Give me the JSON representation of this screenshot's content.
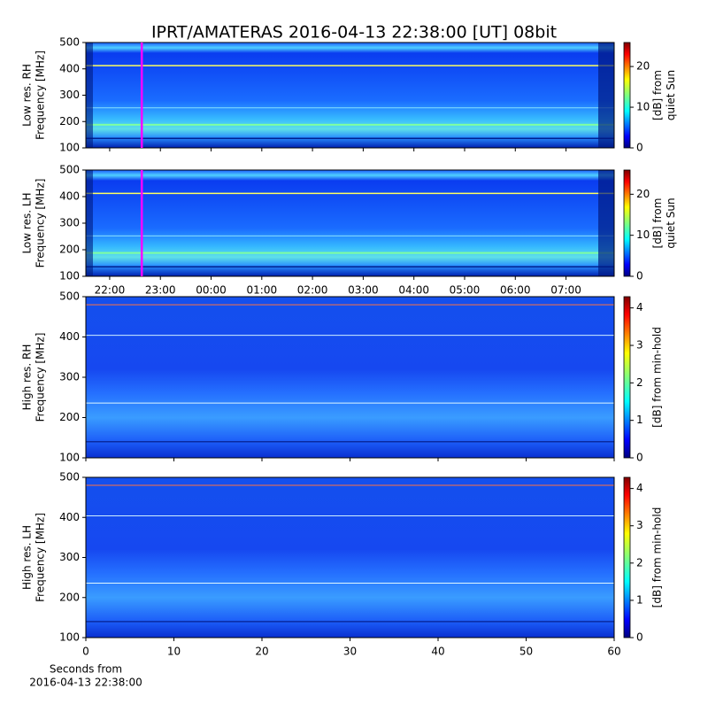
{
  "title": "IPRT/AMATERAS 2016-04-13 22:38:00 [UT]   08bit",
  "chart_data": [
    {
      "type": "spectrogram",
      "ylabel": [
        "Low res. RH",
        "Frequency [MHz]"
      ],
      "ylim": [
        100,
        500
      ],
      "yticks": [
        100,
        200,
        300,
        400,
        500
      ],
      "xlim": [
        21.53,
        31.95
      ],
      "xticks": [
        22,
        23,
        24,
        25,
        26,
        27,
        28,
        29,
        30,
        31
      ],
      "xtick_labels": false,
      "marker_x": 22.633,
      "marker_color": "#ff00ff",
      "colorbar": {
        "label": [
          "[dB] from",
          "quiet Sun"
        ],
        "lim": [
          0,
          25.9
        ],
        "ticks": [
          0,
          10,
          20
        ]
      }
    },
    {
      "type": "spectrogram",
      "ylabel": [
        "Low res. LH",
        "Frequency [MHz]"
      ],
      "ylim": [
        100,
        500
      ],
      "yticks": [
        100,
        200,
        300,
        400,
        500
      ],
      "xlim": [
        21.53,
        31.95
      ],
      "xticks": [
        {
          "value": 22,
          "label": "22:00"
        },
        {
          "value": 23,
          "label": "23:00"
        },
        {
          "value": 24,
          "label": "00:00"
        },
        {
          "value": 25,
          "label": "01:00"
        },
        {
          "value": 26,
          "label": "02:00"
        },
        {
          "value": 27,
          "label": "03:00"
        },
        {
          "value": 28,
          "label": "04:00"
        },
        {
          "value": 29,
          "label": "05:00"
        },
        {
          "value": 30,
          "label": "06:00"
        },
        {
          "value": 31,
          "label": "07:00"
        }
      ],
      "xtick_labels": true,
      "marker_x": 22.633,
      "marker_color": "#ff00ff",
      "colorbar": {
        "label": [
          "[dB] from",
          "quiet Sun"
        ],
        "lim": [
          0,
          25.9
        ],
        "ticks": [
          0,
          10,
          20
        ]
      }
    },
    {
      "type": "spectrogram",
      "ylabel": [
        "High res. RH",
        "Frequency [MHz]"
      ],
      "ylim": [
        100,
        500
      ],
      "yticks": [
        100,
        200,
        300,
        400,
        500
      ],
      "xlim": [
        0,
        60
      ],
      "xticks": [
        0,
        10,
        20,
        30,
        40,
        50,
        60
      ],
      "xtick_labels": false,
      "colorbar": {
        "label": [
          "[dB] from min-hold"
        ],
        "lim": [
          0,
          4.3
        ],
        "ticks": [
          0,
          1,
          2,
          3,
          4
        ]
      }
    },
    {
      "type": "spectrogram",
      "ylabel": [
        "High res. LH",
        "Frequency [MHz]"
      ],
      "ylim": [
        100,
        500
      ],
      "yticks": [
        100,
        200,
        300,
        400,
        500
      ],
      "xlim": [
        0,
        60
      ],
      "xticks": [
        0,
        10,
        20,
        30,
        40,
        50,
        60
      ],
      "xtick_labels": true,
      "xlabel": [
        "Seconds from",
        "2016-04-13 22:38:00"
      ],
      "colorbar": {
        "label": [
          "[dB] from min-hold"
        ],
        "lim": [
          0,
          4.3
        ],
        "ticks": [
          0,
          1,
          2,
          3,
          4
        ]
      }
    }
  ]
}
